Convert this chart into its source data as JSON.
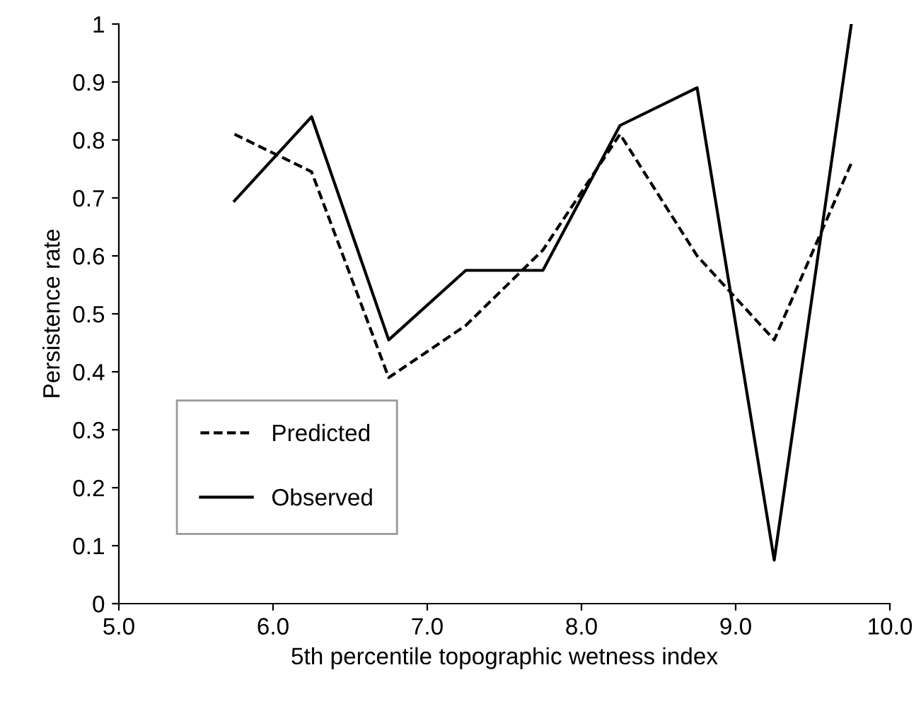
{
  "chart_data": {
    "type": "line",
    "xlabel": "5th percentile topographic wetness index",
    "ylabel": "Persistence rate",
    "x": [
      5.75,
      6.25,
      6.75,
      7.25,
      7.75,
      8.25,
      8.75,
      9.25,
      9.75
    ],
    "series": [
      {
        "name": "Predicted",
        "color": "#000000",
        "line_style": "dashed",
        "values": [
          0.81,
          0.745,
          0.39,
          0.48,
          0.61,
          0.81,
          0.6,
          0.455,
          0.76
        ]
      },
      {
        "name": "Observed",
        "color": "#000000",
        "line_style": "solid",
        "values": [
          0.695,
          0.84,
          0.455,
          0.575,
          0.575,
          0.825,
          0.89,
          0.075,
          1.0
        ]
      }
    ],
    "xlim": [
      5.0,
      10.0
    ],
    "xticks": [
      {
        "value": 5,
        "label": "5.0"
      },
      {
        "value": 6,
        "label": "6.0"
      },
      {
        "value": 7,
        "label": "7.0"
      },
      {
        "value": 8,
        "label": "8.0"
      },
      {
        "value": 9,
        "label": "9.0"
      },
      {
        "value": 10,
        "label": "10.0"
      }
    ],
    "ylim": [
      0,
      1
    ],
    "yticks": [
      0,
      0.1,
      0.2,
      0.3,
      0.4,
      0.5,
      0.6,
      0.7,
      0.8,
      0.9,
      1
    ],
    "grid": false,
    "legend": "bottom left",
    "marker": "none"
  }
}
